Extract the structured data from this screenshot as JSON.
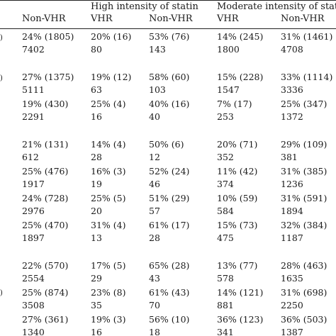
{
  "header": {
    "group_titles": [
      "High intensity of statin",
      "Moderate intensity of stati"
    ],
    "column_labels": [
      "Non-VHR",
      "VHR",
      "Non-VHR",
      "VHR",
      "Non-VHR"
    ]
  },
  "rows": [
    [
      "24% (1805)",
      "20% (16)",
      "53% (76)",
      "14% (245)",
      "31% (1461)"
    ],
    [
      "7402",
      "80",
      "143",
      "1800",
      "4708"
    ],
    [
      "27% (1375)",
      "19% (12)",
      "58% (60)",
      "15% (228)",
      "33% (1114)"
    ],
    [
      "5111",
      "63",
      "103",
      "1547",
      "3336"
    ],
    [
      "19% (430)",
      "25% (4)",
      "40% (16)",
      "7% (17)",
      "25% (347)"
    ],
    [
      "2291",
      "16",
      "40",
      "253",
      "1372"
    ],
    [
      "21% (131)",
      "14% (4)",
      "50% (6)",
      "20% (71)",
      "29% (109)"
    ],
    [
      "612",
      "28",
      "12",
      "352",
      "381"
    ],
    [
      "25% (476)",
      "16% (3)",
      "52% (24)",
      "11% (42)",
      "31% (385)"
    ],
    [
      "1917",
      "19",
      "46",
      "374",
      "1236"
    ],
    [
      "24% (728)",
      "25% (5)",
      "51% (29)",
      "10% (59)",
      "31% (591)"
    ],
    [
      "2976",
      "20",
      "57",
      "584",
      "1894"
    ],
    [
      "25% (470)",
      "31% (4)",
      "61% (17)",
      "15% (73)",
      "32% (384)"
    ],
    [
      "1897",
      "13",
      "28",
      "475",
      "1187"
    ],
    [
      "22% (570)",
      "17% (5)",
      "65% (28)",
      "13% (77)",
      "28% (463)"
    ],
    [
      "2554",
      "29",
      "43",
      "578",
      "1635"
    ],
    [
      "25% (874)",
      "23% (8)",
      "61% (43)",
      "14% (121)",
      "31% (698)"
    ],
    [
      "3508",
      "35",
      "70",
      "881",
      "2250"
    ],
    [
      "27% (361)",
      "19% (3)",
      "56% (10)",
      "36% (123)",
      "36% (503)"
    ],
    [
      "1340",
      "16",
      "18",
      "341",
      "1387"
    ]
  ]
}
